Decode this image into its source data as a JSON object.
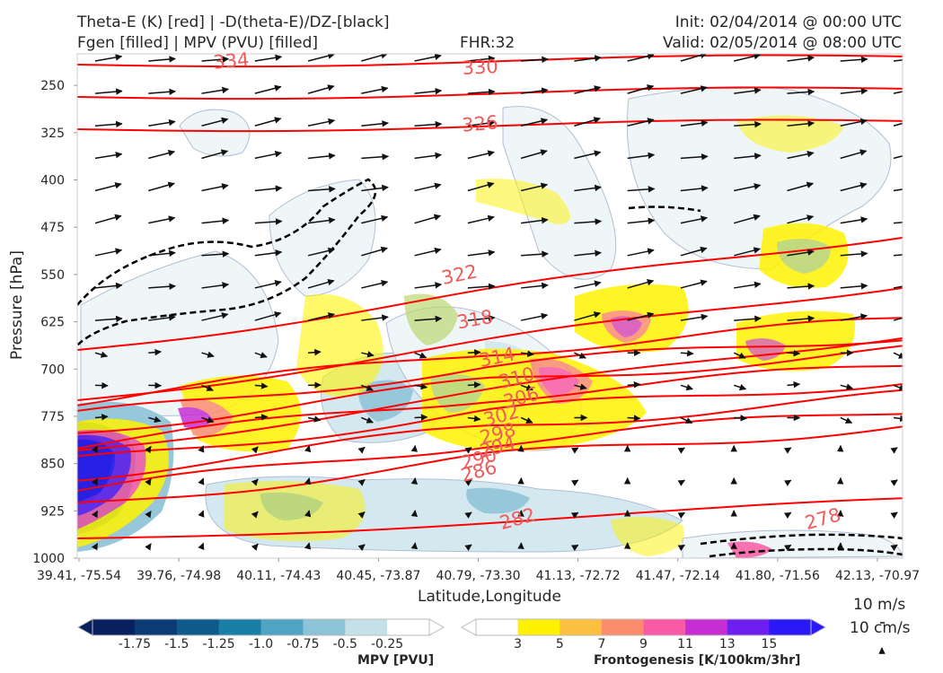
{
  "header": {
    "title_line1": "Theta-E (K) [red] | -D(theta-E)/DZ-[black]",
    "title_line2": "Fgen [filled] | MPV (PVU) [filled]",
    "fhr": "FHR:32",
    "init": "Init: 02/04/2014 @ 00:00 UTC",
    "valid": "Valid: 02/05/2014 @ 08:00 UTC"
  },
  "colors": {
    "theta_e": "#ff0000",
    "stability": "#000000",
    "mpv_ramp": [
      "#08205e",
      "#0b3a74",
      "#0e5a8a",
      "#1a7fa6",
      "#4fa3c3",
      "#8cc3d6",
      "#c6e0e8",
      "#ffffff"
    ],
    "fgen_ramp": [
      "#ffffff",
      "#fff200",
      "#fdbf3f",
      "#fb8c6c",
      "#f95aa6",
      "#c62ed4",
      "#6d1ff0",
      "#2b18f8"
    ]
  },
  "chart_data": {
    "type": "cross-section",
    "xlabel": "Latitude,Longitude",
    "ylabel": "Pressure [hPa]",
    "x_ticks": [
      "39.41, -75.54",
      "39.76, -74.98",
      "40.11, -74.43",
      "40.45, -73.87",
      "40.79, -73.30",
      "41.13, -72.72",
      "41.47, -72.14",
      "41.80, -71.56",
      "42.13, -70.97"
    ],
    "y_ticks": [
      "250",
      "325",
      "400",
      "475",
      "550",
      "625",
      "700",
      "775",
      "850",
      "925",
      "1000"
    ],
    "ylim": [
      1000,
      200
    ],
    "theta_e_labels": [
      "334",
      "330",
      "326",
      "322",
      "318",
      "314",
      "310",
      "306",
      "302",
      "298",
      "294",
      "290",
      "286",
      "282",
      "278"
    ],
    "legend": {
      "mpv": {
        "title": "MPV [PVU]",
        "ticks": [
          "-1.75",
          "-1.5",
          "-1.25",
          "-1.0",
          "-0.75",
          "-0.5",
          "-0.25"
        ]
      },
      "fgen": {
        "title": "Frontogenesis [K/100km/3hr]",
        "ticks": [
          "3",
          "5",
          "7",
          "9",
          "11",
          "13",
          "15"
        ]
      }
    },
    "vector_reference": {
      "horizontal": "10 m/s",
      "vertical": "10 cm/s"
    }
  }
}
